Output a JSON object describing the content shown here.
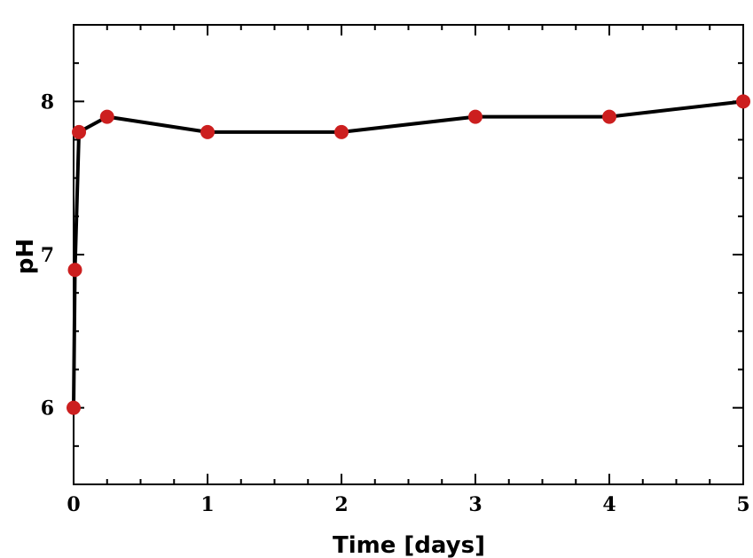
{
  "chart_data": {
    "type": "line",
    "xlabel": "Time [days]",
    "ylabel": "pH",
    "xlim": [
      0,
      5
    ],
    "ylim": [
      5.5,
      8.5
    ],
    "xticks": [
      0,
      1,
      2,
      3,
      4,
      5
    ],
    "xtick_labels": [
      "0",
      "1",
      "2",
      "3",
      "4",
      "5"
    ],
    "x_minor_step": 0.25,
    "yticks": [
      6,
      7,
      8
    ],
    "ytick_labels": [
      "6",
      "7",
      "8"
    ],
    "y_minor_step": 0.25,
    "grid": false,
    "legend": "none",
    "series": [
      {
        "x": [
          0,
          0.01,
          0.04,
          0.25,
          1,
          2,
          3,
          4,
          5
        ],
        "y": [
          6.0,
          6.9,
          7.8,
          7.9,
          7.8,
          7.8,
          7.9,
          7.9,
          8.0
        ]
      }
    ],
    "line_color": "#000000",
    "marker_color": "#cc1f1f"
  }
}
